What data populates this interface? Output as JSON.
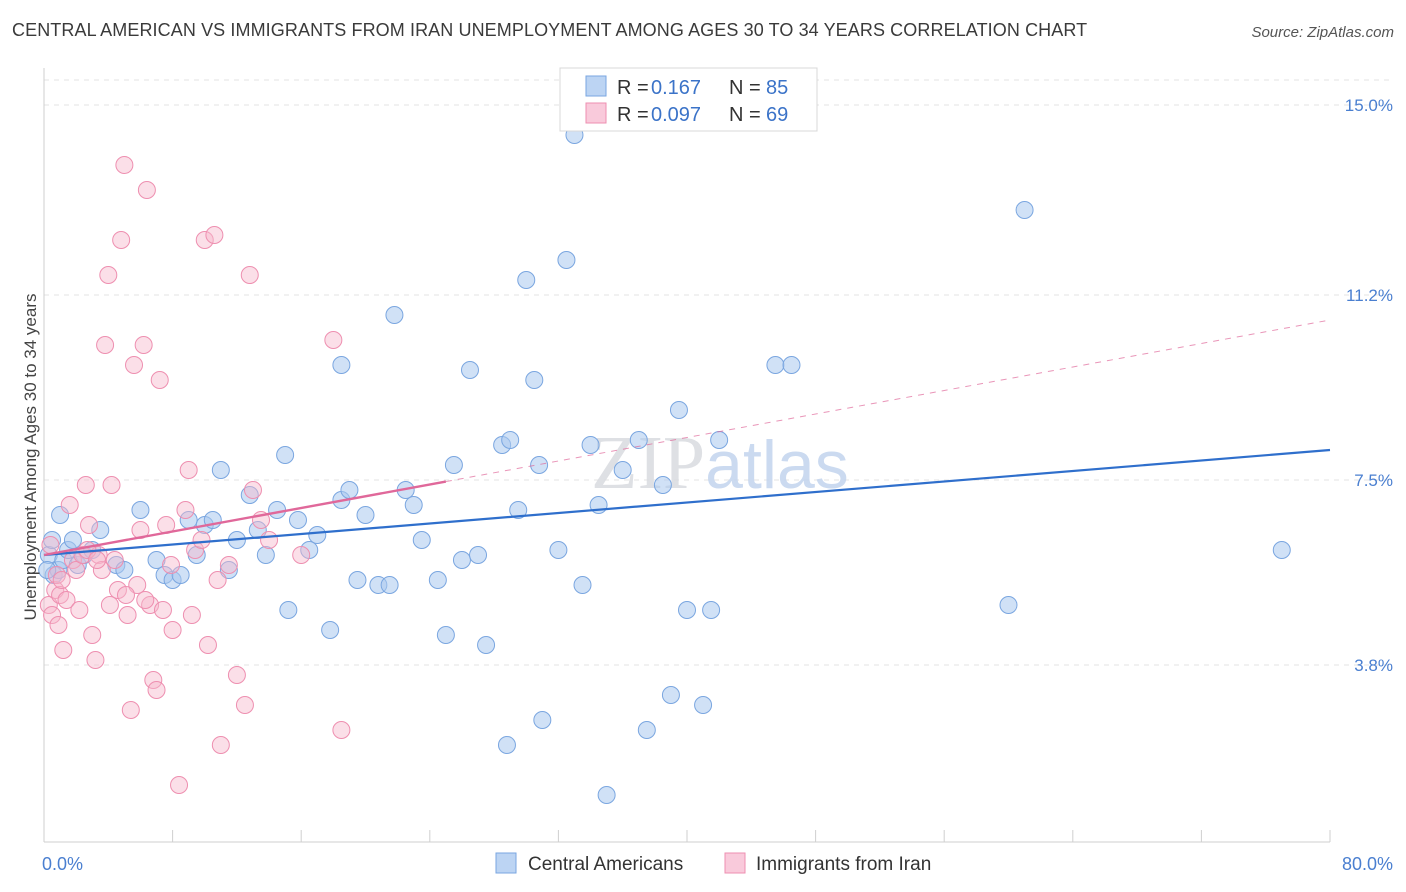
{
  "title": "CENTRAL AMERICAN VS IMMIGRANTS FROM IRAN UNEMPLOYMENT AMONG AGES 30 TO 34 YEARS CORRELATION CHART",
  "source": "Source: ZipAtlas.com",
  "watermark": "ZIPatlas",
  "colors": {
    "blue": "#a9c8ef",
    "blue_stroke": "#7aa6e0",
    "blue_line": "#2f6fcc",
    "pink": "#f6b9cd",
    "pink_stroke": "#ee8fb0",
    "pink_line": "#e0689a",
    "axis_text": "#4a7fd0"
  },
  "legend": {
    "rows": [
      {
        "r_label": "R =",
        "r_value": "0.167",
        "n_label": "N =",
        "n_value": "85"
      },
      {
        "r_label": "R =",
        "r_value": "0.097",
        "n_label": "N =",
        "n_value": "69"
      }
    ]
  },
  "bottom_legend": [
    "Central Americans",
    "Immigrants from Iran"
  ],
  "chart_data": {
    "type": "scatter",
    "title": "CENTRAL AMERICAN VS IMMIGRANTS FROM IRAN UNEMPLOYMENT AMONG AGES 30 TO 34 YEARS CORRELATION CHART",
    "xlabel": "",
    "ylabel": "Unemployment Among Ages 30 to 34 years",
    "xlim": [
      0,
      80
    ],
    "ylim": [
      0.5,
      15.5
    ],
    "x_tick_labels": [
      "0.0%",
      "80.0%"
    ],
    "y_ticks": [
      3.8,
      7.5,
      11.2,
      15.0
    ],
    "y_tick_labels": [
      "3.8%",
      "7.5%",
      "11.2%",
      "15.0%"
    ],
    "grid": true,
    "legend_position": "top-center",
    "series": [
      {
        "name": "Central Americans",
        "color": "#a9c8ef",
        "trend": {
          "x": [
            0,
            80
          ],
          "y": [
            6.0,
            8.1
          ]
        },
        "points": [
          [
            0.3,
            6.0
          ],
          [
            0.6,
            5.6
          ],
          [
            0.9,
            5.7
          ],
          [
            1.2,
            5.9
          ],
          [
            1.5,
            6.1
          ],
          [
            1.8,
            6.3
          ],
          [
            2.1,
            5.8
          ],
          [
            2.5,
            6.0
          ],
          [
            3.0,
            6.1
          ],
          [
            3.5,
            6.5
          ],
          [
            4.5,
            5.8
          ],
          [
            5.0,
            5.7
          ],
          [
            6.0,
            6.9
          ],
          [
            7.0,
            5.9
          ],
          [
            7.5,
            5.6
          ],
          [
            8.0,
            5.5
          ],
          [
            8.5,
            5.6
          ],
          [
            9.0,
            6.7
          ],
          [
            9.5,
            6.0
          ],
          [
            10.0,
            6.6
          ],
          [
            10.5,
            6.7
          ],
          [
            11.0,
            7.7
          ],
          [
            11.5,
            5.7
          ],
          [
            12.0,
            6.3
          ],
          [
            12.8,
            7.2
          ],
          [
            13.3,
            6.5
          ],
          [
            13.8,
            6.0
          ],
          [
            14.5,
            6.9
          ],
          [
            15.0,
            8.0
          ],
          [
            15.2,
            4.9
          ],
          [
            15.8,
            6.7
          ],
          [
            16.5,
            6.1
          ],
          [
            17.0,
            6.4
          ],
          [
            17.8,
            4.5
          ],
          [
            18.5,
            7.1
          ],
          [
            18.5,
            9.8
          ],
          [
            19.0,
            7.3
          ],
          [
            19.5,
            5.5
          ],
          [
            20.0,
            6.8
          ],
          [
            20.8,
            5.4
          ],
          [
            21.5,
            5.4
          ],
          [
            21.8,
            10.8
          ],
          [
            22.5,
            7.3
          ],
          [
            23.0,
            7.0
          ],
          [
            23.5,
            6.3
          ],
          [
            24.5,
            5.5
          ],
          [
            25.0,
            4.4
          ],
          [
            25.5,
            7.8
          ],
          [
            26.0,
            5.9
          ],
          [
            26.5,
            9.7
          ],
          [
            27.0,
            6.0
          ],
          [
            27.5,
            4.2
          ],
          [
            28.5,
            8.2
          ],
          [
            28.8,
            2.2
          ],
          [
            29.0,
            8.3
          ],
          [
            29.5,
            6.9
          ],
          [
            30.0,
            11.5
          ],
          [
            30.5,
            9.5
          ],
          [
            30.8,
            7.8
          ],
          [
            31.0,
            2.7
          ],
          [
            32.0,
            6.1
          ],
          [
            32.5,
            11.9
          ],
          [
            33.0,
            14.4
          ],
          [
            33.5,
            5.4
          ],
          [
            34.0,
            8.2
          ],
          [
            34.5,
            7.0
          ],
          [
            35.0,
            1.2
          ],
          [
            36.0,
            7.7
          ],
          [
            37.0,
            8.3
          ],
          [
            37.5,
            2.5
          ],
          [
            38.5,
            7.4
          ],
          [
            39.0,
            3.2
          ],
          [
            39.5,
            8.9
          ],
          [
            40.0,
            4.9
          ],
          [
            41.0,
            3.0
          ],
          [
            41.5,
            4.9
          ],
          [
            42.0,
            8.3
          ],
          [
            45.5,
            9.8
          ],
          [
            46.5,
            9.8
          ],
          [
            61.0,
            12.9
          ],
          [
            60.0,
            5.0
          ],
          [
            77.0,
            6.1
          ],
          [
            0.2,
            5.7
          ],
          [
            0.5,
            6.3
          ],
          [
            1.0,
            6.8
          ]
        ]
      },
      {
        "name": "Immigrants from Iran",
        "color": "#f6b9cd",
        "trend": {
          "x": [
            0,
            80
          ],
          "y": [
            6.0,
            10.7
          ]
        },
        "trend_solid_x_end": 25,
        "points": [
          [
            0.3,
            5.0
          ],
          [
            0.5,
            4.8
          ],
          [
            0.7,
            5.3
          ],
          [
            0.8,
            5.6
          ],
          [
            1.0,
            5.2
          ],
          [
            1.2,
            4.1
          ],
          [
            1.4,
            5.1
          ],
          [
            1.6,
            7.0
          ],
          [
            1.8,
            5.9
          ],
          [
            2.0,
            5.7
          ],
          [
            2.2,
            4.9
          ],
          [
            2.4,
            6.0
          ],
          [
            2.6,
            7.4
          ],
          [
            2.8,
            6.6
          ],
          [
            3.0,
            4.4
          ],
          [
            3.2,
            3.9
          ],
          [
            3.4,
            6.0
          ],
          [
            3.6,
            5.7
          ],
          [
            3.8,
            10.2
          ],
          [
            4.0,
            11.6
          ],
          [
            4.2,
            7.4
          ],
          [
            4.4,
            5.9
          ],
          [
            4.6,
            5.3
          ],
          [
            4.8,
            12.3
          ],
          [
            5.0,
            13.8
          ],
          [
            5.2,
            4.8
          ],
          [
            5.4,
            2.9
          ],
          [
            5.6,
            9.8
          ],
          [
            5.8,
            5.4
          ],
          [
            6.0,
            6.5
          ],
          [
            6.2,
            10.2
          ],
          [
            6.4,
            13.3
          ],
          [
            6.6,
            5.0
          ],
          [
            6.8,
            3.5
          ],
          [
            7.0,
            3.3
          ],
          [
            7.2,
            9.5
          ],
          [
            7.4,
            4.9
          ],
          [
            7.6,
            6.6
          ],
          [
            8.0,
            4.5
          ],
          [
            8.4,
            1.4
          ],
          [
            8.8,
            6.9
          ],
          [
            9.0,
            7.7
          ],
          [
            9.4,
            6.1
          ],
          [
            9.8,
            6.3
          ],
          [
            10.0,
            12.3
          ],
          [
            10.2,
            4.2
          ],
          [
            10.6,
            12.4
          ],
          [
            11.0,
            2.2
          ],
          [
            11.5,
            5.8
          ],
          [
            12.0,
            3.6
          ],
          [
            12.5,
            3.0
          ],
          [
            13.0,
            7.3
          ],
          [
            13.5,
            6.7
          ],
          [
            14.0,
            6.3
          ],
          [
            12.8,
            11.6
          ],
          [
            16.0,
            6.0
          ],
          [
            18.0,
            10.3
          ],
          [
            18.5,
            2.5
          ],
          [
            0.4,
            6.2
          ],
          [
            1.1,
            5.5
          ],
          [
            2.7,
            6.1
          ],
          [
            3.3,
            5.9
          ],
          [
            4.1,
            5.0
          ],
          [
            5.1,
            5.2
          ],
          [
            6.3,
            5.1
          ],
          [
            7.9,
            5.8
          ],
          [
            9.2,
            4.8
          ],
          [
            10.8,
            5.5
          ],
          [
            0.9,
            4.6
          ]
        ]
      }
    ]
  }
}
